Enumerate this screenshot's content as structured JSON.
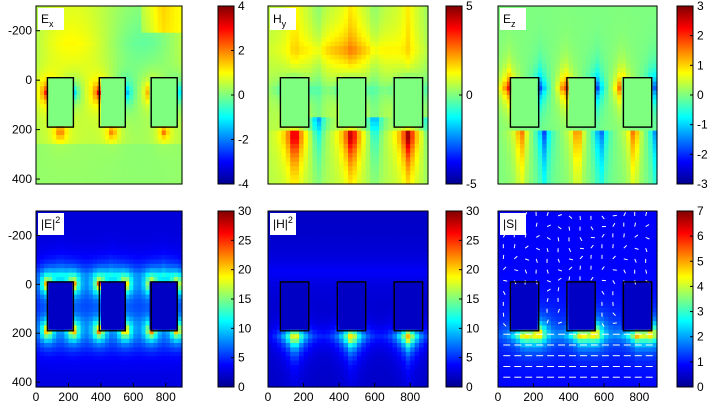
{
  "colormap": [
    "#00008f",
    "#0000ff",
    "#007fff",
    "#00ffff",
    "#7fff7f",
    "#ffff00",
    "#ff7f00",
    "#ff0000",
    "#7f0000"
  ],
  "chart_data": [
    {
      "type": "heatmap",
      "label": "E",
      "label_sub": "x",
      "label_sup": "",
      "field": "ex",
      "x_ticks": [],
      "y_ticks": [
        -200,
        0,
        200,
        400
      ],
      "ylim": [
        -300,
        420
      ],
      "colorbar": {
        "min": -4,
        "max": 4,
        "ticks": [
          4,
          2,
          0,
          -2,
          -4
        ]
      }
    },
    {
      "type": "heatmap",
      "label": "H",
      "label_sub": "y",
      "label_sup": "",
      "field": "hy",
      "x_ticks": [],
      "y_ticks": [],
      "ylim": [
        -300,
        420
      ],
      "colorbar": {
        "min": -5,
        "max": 5,
        "ticks": [
          5,
          0,
          -5
        ]
      }
    },
    {
      "type": "heatmap",
      "label": "E",
      "label_sub": "z",
      "label_sup": "",
      "field": "ez",
      "x_ticks": [],
      "y_ticks": [],
      "ylim": [
        -300,
        420
      ],
      "colorbar": {
        "min": -3,
        "max": 3,
        "ticks": [
          3,
          2,
          1,
          0,
          -1,
          -2,
          -3
        ]
      }
    },
    {
      "type": "heatmap",
      "label": "|E|",
      "label_sub": "",
      "label_sup": "2",
      "field": "e2",
      "x_ticks": [
        0,
        200,
        400,
        600,
        800
      ],
      "y_ticks": [
        -200,
        0,
        200,
        400
      ],
      "ylim": [
        -300,
        420
      ],
      "colorbar": {
        "min": 0,
        "max": 30,
        "ticks": [
          30,
          25,
          20,
          15,
          10,
          5,
          0
        ]
      }
    },
    {
      "type": "heatmap",
      "label": "|H|",
      "label_sub": "",
      "label_sup": "2",
      "field": "h2",
      "x_ticks": [
        0,
        200,
        400,
        600,
        800
      ],
      "y_ticks": [],
      "ylim": [
        -300,
        420
      ],
      "colorbar": {
        "min": 0,
        "max": 30,
        "ticks": [
          30,
          25,
          20,
          15,
          10,
          5,
          0
        ]
      }
    },
    {
      "type": "heatmap",
      "label": "|S|",
      "label_sub": "",
      "label_sup": "",
      "field": "s",
      "x_ticks": [
        0,
        200,
        400,
        600,
        800
      ],
      "y_ticks": [],
      "ylim": [
        -300,
        420
      ],
      "colorbar": {
        "min": 0,
        "max": 7,
        "ticks": [
          7,
          6,
          5,
          4,
          3,
          2,
          1,
          0
        ]
      }
    }
  ]
}
